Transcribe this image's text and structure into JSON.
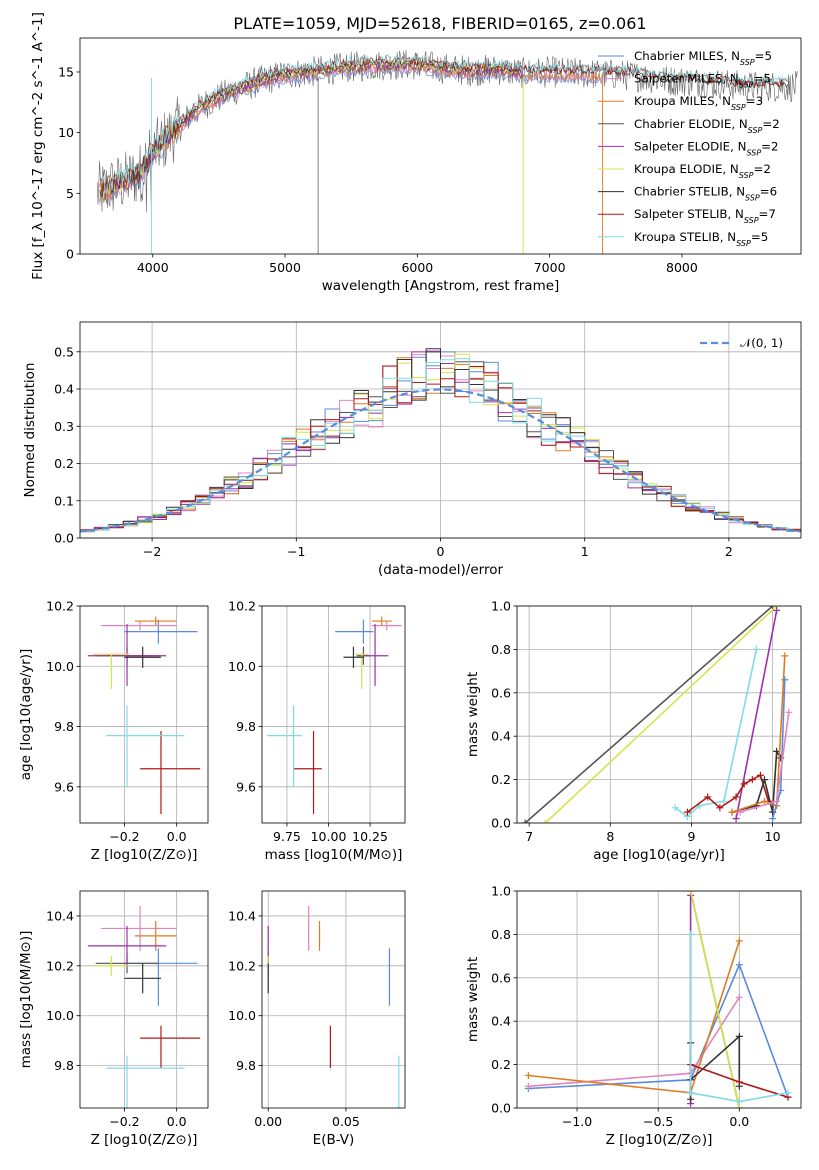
{
  "title": "PLATE=1059, MJD=52618, FIBERID=0165, z=0.061",
  "colors": {
    "Chabrier MILES": "#5b8bdc",
    "Salpeter MILES": "#e284c2",
    "Kroupa MILES": "#e07b22",
    "Chabrier ELODIE": "#555555",
    "Salpeter ELODIE": "#9e31aa",
    "Kroupa ELODIE": "#d7e34a",
    "Chabrier STELIB": "#333333",
    "Salpeter STELIB": "#b01818",
    "Kroupa STELIB": "#7fdbe4"
  },
  "chart_data": [
    {
      "id": "spectrum",
      "type": "line",
      "title": "PLATE=1059, MJD=52618, FIBERID=0165, z=0.061",
      "xlabel": "wavelength [Angstrom, rest frame]",
      "ylabel": "Flux [f_λ 10^-17 erg cm^-2 s^-1 A^-1]",
      "xlim": [
        3450,
        8900
      ],
      "ylim": [
        0,
        17.8
      ],
      "xticks": [
        4000,
        5000,
        6000,
        7000,
        8000
      ],
      "yticks": [
        0,
        5,
        10,
        15
      ],
      "grid": false,
      "legend": "upper right",
      "continuum": {
        "x": [
          3600,
          3700,
          3800,
          3900,
          4000,
          4100,
          4200,
          4300,
          4400,
          4600,
          4800,
          5000,
          5200,
          5400,
          5600,
          5800,
          6000,
          6200,
          6400,
          6600,
          6800,
          7000,
          7200,
          7400,
          7500,
          7700,
          7900,
          8100,
          8300,
          8500
        ],
        "y": [
          5.1,
          5.6,
          6.0,
          6.6,
          8.3,
          9.5,
          10.5,
          11.6,
          12.4,
          13.4,
          14.2,
          14.8,
          15.0,
          15.3,
          15.5,
          15.6,
          15.6,
          15.3,
          15.1,
          15.2,
          14.9,
          15.0,
          14.9,
          14.8,
          14.8,
          14.6,
          14.3,
          14.2,
          14.0,
          13.8
        ]
      },
      "series": [
        {
          "name": "Chabrier MILES",
          "nssp": "5",
          "xmax": 7400
        },
        {
          "name": "Salpeter MILES",
          "nssp": "5",
          "xmax": 7400
        },
        {
          "name": "Kroupa MILES",
          "nssp": "3",
          "xmax": 7400
        },
        {
          "name": "Chabrier ELODIE",
          "nssp": "2",
          "xmax": 6800
        },
        {
          "name": "Salpeter ELODIE",
          "nssp": "2",
          "xmax": 6800
        },
        {
          "name": "Kroupa ELODIE",
          "nssp": "2",
          "xmax": 6800
        },
        {
          "name": "Chabrier STELIB",
          "nssp": "6",
          "xmax": 8800
        },
        {
          "name": "Salpeter STELIB",
          "nssp": "7",
          "xmax": 8800
        },
        {
          "name": "Kroupa STELIB",
          "nssp": "5",
          "xmax": 8800
        }
      ]
    },
    {
      "id": "residuals",
      "type": "line",
      "xlabel": "(data-model)/error",
      "ylabel": "Normed distribution",
      "xlim": [
        -2.5,
        2.5
      ],
      "ylim": [
        0,
        0.58
      ],
      "xticks": [
        -2,
        -1,
        0,
        1,
        2
      ],
      "yticks": [
        0.0,
        0.1,
        0.2,
        0.3,
        0.4,
        0.5
      ],
      "grid": true,
      "legend": "upper right",
      "reference": {
        "name": "N(0,1)",
        "mean": 0,
        "sigma": 1
      },
      "bin_width": 0.1
    },
    {
      "id": "age_vs_Z",
      "type": "scatter",
      "xlabel": "Z [log10(Z/Z⊙)]",
      "ylabel": "age  [log10(age/yr)]",
      "xlim": [
        -0.37,
        0.12
      ],
      "ylim": [
        9.48,
        10.2
      ],
      "xticks": [
        -0.2,
        0.0
      ],
      "yticks": [
        9.6,
        9.8,
        10.0,
        10.2
      ],
      "grid": true,
      "points": [
        {
          "name": "Chabrier MILES",
          "x": -0.07,
          "xerr": [
            0.13,
            0.15
          ],
          "y": 10.115,
          "yerr": [
            0.04,
            0.04
          ]
        },
        {
          "name": "Salpeter MILES",
          "x": -0.14,
          "xerr": [
            0.15,
            0.14
          ],
          "y": 10.135,
          "yerr": [
            0.015,
            0.015
          ]
        },
        {
          "name": "Kroupa MILES",
          "x": -0.08,
          "xerr": [
            0.08,
            0.08
          ],
          "y": 10.15,
          "yerr": [
            0.015,
            0.015
          ]
        },
        {
          "name": "Chabrier ELODIE",
          "x": -0.19,
          "xerr": [
            0.12,
            0.12
          ],
          "y": 10.035,
          "yerr": [
            0.03,
            0.03
          ]
        },
        {
          "name": "Salpeter ELODIE",
          "x": -0.19,
          "xerr": [
            0.15,
            0.15
          ],
          "y": 10.035,
          "yerr": [
            0.1,
            0.105
          ]
        },
        {
          "name": "Kroupa ELODIE",
          "x": -0.25,
          "xerr": [
            0.07,
            0.07
          ],
          "y": 10.04,
          "yerr": [
            0.115,
            0.0
          ]
        },
        {
          "name": "Chabrier STELIB",
          "x": -0.13,
          "xerr": [
            0.07,
            0.07
          ],
          "y": 10.03,
          "yerr": [
            0.035,
            0.035
          ]
        },
        {
          "name": "Salpeter STELIB",
          "x": -0.06,
          "xerr": [
            0.08,
            0.15
          ],
          "y": 9.66,
          "yerr": [
            0.15,
            0.125
          ]
        },
        {
          "name": "Kroupa STELIB",
          "x": -0.19,
          "xerr": [
            0.08,
            0.22
          ],
          "y": 9.77,
          "yerr": [
            0.17,
            0.1
          ]
        }
      ]
    },
    {
      "id": "age_vs_mass",
      "type": "scatter",
      "xlabel": "mass [log10(M/M⊙)]",
      "ylabel": "",
      "xlim": [
        9.6,
        10.46
      ],
      "ylim": [
        9.48,
        10.2
      ],
      "xticks": [
        9.75,
        10.0,
        10.25
      ],
      "yticks": [
        9.6,
        9.8,
        10.0,
        10.2
      ],
      "grid": true,
      "points": [
        {
          "name": "Chabrier MILES",
          "x": 10.21,
          "xerr": [
            0.17,
            0.06
          ],
          "y": 10.115,
          "yerr": [
            0.04,
            0.04
          ]
        },
        {
          "name": "Salpeter MILES",
          "x": 10.35,
          "xerr": [
            0.09,
            0.09
          ],
          "y": 10.135,
          "yerr": [
            0.015,
            0.015
          ]
        },
        {
          "name": "Kroupa MILES",
          "x": 10.32,
          "xerr": [
            0.06,
            0.06
          ],
          "y": 10.15,
          "yerr": [
            0.015,
            0.015
          ]
        },
        {
          "name": "Chabrier ELODIE",
          "x": 10.21,
          "xerr": [
            0.04,
            0.04
          ],
          "y": 10.035,
          "yerr": [
            0.03,
            0.03
          ]
        },
        {
          "name": "Salpeter ELODIE",
          "x": 10.28,
          "xerr": [
            0.08,
            0.08
          ],
          "y": 10.035,
          "yerr": [
            0.1,
            0.105
          ]
        },
        {
          "name": "Kroupa ELODIE",
          "x": 10.2,
          "xerr": [
            0.04,
            0.04
          ],
          "y": 10.04,
          "yerr": [
            0.115,
            0.0
          ]
        },
        {
          "name": "Chabrier STELIB",
          "x": 10.15,
          "xerr": [
            0.06,
            0.06
          ],
          "y": 10.03,
          "yerr": [
            0.035,
            0.035
          ]
        },
        {
          "name": "Salpeter STELIB",
          "x": 9.91,
          "xerr": [
            0.12,
            0.05
          ],
          "y": 9.66,
          "yerr": [
            0.15,
            0.125
          ]
        },
        {
          "name": "Kroupa STELIB",
          "x": 9.79,
          "xerr": [
            0.16,
            0.05
          ],
          "y": 9.77,
          "yerr": [
            0.17,
            0.1
          ]
        }
      ]
    },
    {
      "id": "weight_vs_age",
      "type": "line",
      "xlabel": "age  [log10(age/yr)]",
      "ylabel": "mass weight",
      "xlim": [
        6.85,
        10.35
      ],
      "ylim": [
        0,
        1.0
      ],
      "xticks": [
        7,
        8,
        9,
        10
      ],
      "yticks": [
        0.0,
        0.2,
        0.4,
        0.6,
        0.8,
        1.0
      ],
      "grid": true,
      "series": [
        {
          "name": "Chabrier ELODIE",
          "x": [
            6.95,
            10.0
          ],
          "y": [
            0.0,
            1.0
          ]
        },
        {
          "name": "Kroupa ELODIE",
          "x": [
            7.2,
            10.05
          ],
          "y": [
            0.0,
            1.0
          ]
        },
        {
          "name": "Salpeter ELODIE",
          "x": [
            9.55,
            10.05
          ],
          "y": [
            0.02,
            0.98
          ]
        },
        {
          "name": "Kroupa STELIB",
          "x": [
            8.8,
            8.95,
            9.1,
            9.4,
            9.8
          ],
          "y": [
            0.07,
            0.03,
            0.08,
            0.1,
            0.8
          ]
        },
        {
          "name": "Salpeter STELIB",
          "x": [
            8.95,
            9.2,
            9.35,
            9.55,
            9.65,
            9.75,
            9.85,
            9.95
          ],
          "y": [
            0.05,
            0.12,
            0.07,
            0.12,
            0.18,
            0.2,
            0.22,
            0.1
          ]
        },
        {
          "name": "Chabrier STELIB",
          "x": [
            9.5,
            9.8,
            9.9,
            10.0,
            10.05,
            10.1
          ],
          "y": [
            0.05,
            0.08,
            0.2,
            0.05,
            0.33,
            0.3
          ]
        },
        {
          "name": "Kroupa MILES",
          "x": [
            9.5,
            9.9,
            10.05,
            10.15
          ],
          "y": [
            0.05,
            0.1,
            0.08,
            0.77
          ]
        },
        {
          "name": "Chabrier MILES",
          "x": [
            10.0,
            10.1,
            10.15
          ],
          "y": [
            0.02,
            0.15,
            0.66
          ]
        },
        {
          "name": "Salpeter MILES",
          "x": [
            9.6,
            10.05,
            10.2
          ],
          "y": [
            0.05,
            0.1,
            0.51
          ]
        }
      ]
    },
    {
      "id": "mass_vs_Z",
      "type": "scatter",
      "xlabel": "Z [log10(Z/Z⊙)]",
      "ylabel": "mass [log10(M/M⊙)]",
      "xlim": [
        -0.37,
        0.12
      ],
      "ylim": [
        9.63,
        10.5
      ],
      "xticks": [
        -0.2,
        0.0
      ],
      "yticks": [
        9.8,
        10.0,
        10.2,
        10.4
      ],
      "grid": true,
      "points": [
        {
          "name": "Chabrier MILES",
          "x": -0.07,
          "xerr": [
            0.13,
            0.15
          ],
          "y": 10.21,
          "yerr": [
            0.17,
            0.06
          ]
        },
        {
          "name": "Salpeter MILES",
          "x": -0.14,
          "xerr": [
            0.15,
            0.14
          ],
          "y": 10.35,
          "yerr": [
            0.09,
            0.09
          ]
        },
        {
          "name": "Kroupa MILES",
          "x": -0.08,
          "xerr": [
            0.08,
            0.08
          ],
          "y": 10.32,
          "yerr": [
            0.06,
            0.06
          ]
        },
        {
          "name": "Chabrier ELODIE",
          "x": -0.19,
          "xerr": [
            0.12,
            0.12
          ],
          "y": 10.21,
          "yerr": [
            0.04,
            0.04
          ]
        },
        {
          "name": "Salpeter ELODIE",
          "x": -0.19,
          "xerr": [
            0.15,
            0.15
          ],
          "y": 10.28,
          "yerr": [
            0.08,
            0.08
          ]
        },
        {
          "name": "Kroupa ELODIE",
          "x": -0.25,
          "xerr": [
            0.07,
            0.07
          ],
          "y": 10.2,
          "yerr": [
            0.04,
            0.04
          ]
        },
        {
          "name": "Chabrier STELIB",
          "x": -0.13,
          "xerr": [
            0.07,
            0.07
          ],
          "y": 10.15,
          "yerr": [
            0.06,
            0.06
          ]
        },
        {
          "name": "Salpeter STELIB",
          "x": -0.06,
          "xerr": [
            0.08,
            0.15
          ],
          "y": 9.91,
          "yerr": [
            0.12,
            0.05
          ]
        },
        {
          "name": "Kroupa STELIB",
          "x": -0.19,
          "xerr": [
            0.08,
            0.22
          ],
          "y": 9.79,
          "yerr": [
            0.16,
            0.05
          ]
        }
      ]
    },
    {
      "id": "mass_vs_ebv",
      "type": "scatter",
      "xlabel": "E(B-V)",
      "ylabel": "",
      "xlim": [
        -0.004,
        0.088
      ],
      "ylim": [
        9.63,
        10.5
      ],
      "xticks": [
        0.0,
        0.05
      ],
      "yticks": [
        9.8,
        10.0,
        10.2,
        10.4
      ],
      "grid": true,
      "points": [
        {
          "name": "Chabrier MILES",
          "x": 0.078,
          "y": 10.21,
          "yerr": [
            0.17,
            0.06
          ]
        },
        {
          "name": "Salpeter MILES",
          "x": 0.026,
          "y": 10.35,
          "yerr": [
            0.09,
            0.09
          ]
        },
        {
          "name": "Kroupa MILES",
          "x": 0.033,
          "y": 10.32,
          "yerr": [
            0.06,
            0.06
          ]
        },
        {
          "name": "Chabrier ELODIE",
          "x": 0.0,
          "y": 10.21,
          "yerr": [
            0.04,
            0.04
          ]
        },
        {
          "name": "Salpeter ELODIE",
          "x": 0.0,
          "y": 10.28,
          "yerr": [
            0.08,
            0.08
          ]
        },
        {
          "name": "Kroupa ELODIE",
          "x": 0.0,
          "y": 10.2,
          "yerr": [
            0.04,
            0.04
          ]
        },
        {
          "name": "Chabrier STELIB",
          "x": 0.0,
          "y": 10.15,
          "yerr": [
            0.06,
            0.06
          ]
        },
        {
          "name": "Salpeter STELIB",
          "x": 0.04,
          "y": 9.91,
          "yerr": [
            0.12,
            0.05
          ]
        },
        {
          "name": "Kroupa STELIB",
          "x": 0.084,
          "y": 9.79,
          "yerr": [
            0.16,
            0.05
          ]
        }
      ]
    },
    {
      "id": "weight_vs_Z",
      "type": "line",
      "xlabel": "Z [log10(Z/Z⊙)]",
      "ylabel": "mass weight",
      "xlim": [
        -1.37,
        0.38
      ],
      "ylim": [
        0,
        1.0
      ],
      "xticks": [
        -1.0,
        -0.5,
        0.0
      ],
      "yticks": [
        0.0,
        0.2,
        0.4,
        0.6,
        0.8,
        1.0
      ],
      "grid": true,
      "series": [
        {
          "name": "Chabrier MILES",
          "x": [
            -1.3,
            -0.3,
            0.0,
            0.3
          ],
          "y": [
            0.09,
            0.13,
            0.66,
            0.05
          ]
        },
        {
          "name": "Salpeter MILES",
          "x": [
            -1.3,
            -0.3,
            0.0
          ],
          "y": [
            0.1,
            0.16,
            0.51
          ]
        },
        {
          "name": "Kroupa MILES",
          "x": [
            -1.3,
            -0.3,
            0.0
          ],
          "y": [
            0.15,
            0.07,
            0.77
          ]
        },
        {
          "name": "Chabrier ELODIE",
          "x": [
            -0.3,
            0.0
          ],
          "y": [
            1.0,
            0.0
          ]
        },
        {
          "name": "Salpeter ELODIE",
          "x": [
            -0.3,
            -0.3
          ],
          "y": [
            0.98,
            0.02
          ]
        },
        {
          "name": "Kroupa ELODIE",
          "x": [
            -0.3,
            0.0
          ],
          "y": [
            1.0,
            0.0
          ]
        },
        {
          "name": "Chabrier STELIB",
          "x": [
            -0.3,
            -0.3,
            -0.3,
            0.0,
            0.0
          ],
          "y": [
            0.3,
            0.04,
            0.13,
            0.33,
            0.1
          ]
        },
        {
          "name": "Salpeter STELIB",
          "x": [
            -0.3,
            0.0,
            0.3
          ],
          "y": [
            0.2,
            0.12,
            0.05
          ]
        },
        {
          "name": "Kroupa STELIB",
          "x": [
            -0.3,
            -0.3,
            0.0,
            0.3
          ],
          "y": [
            0.8,
            0.07,
            0.03,
            0.07
          ]
        }
      ]
    }
  ]
}
